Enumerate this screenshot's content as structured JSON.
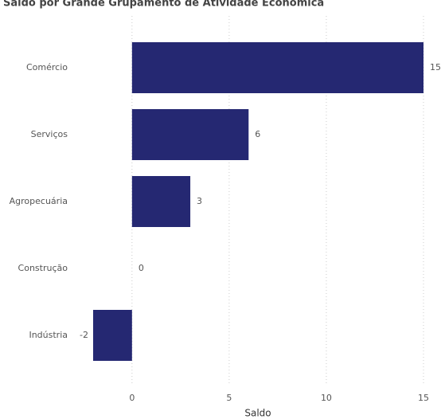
{
  "chart_data": {
    "type": "hbar",
    "title": "Saldo por Grande Grupamento de Atividade Econômica",
    "categories": [
      "Comércio",
      "Serviços",
      "Agropecuária",
      "Construção",
      "Indústria"
    ],
    "values": [
      15,
      6,
      3,
      0,
      -2
    ],
    "color": "#252872",
    "xlim": [
      -2,
      15
    ],
    "xticks": [
      0,
      5,
      10,
      15
    ],
    "xlabel": "Saldo",
    "grid": true
  }
}
